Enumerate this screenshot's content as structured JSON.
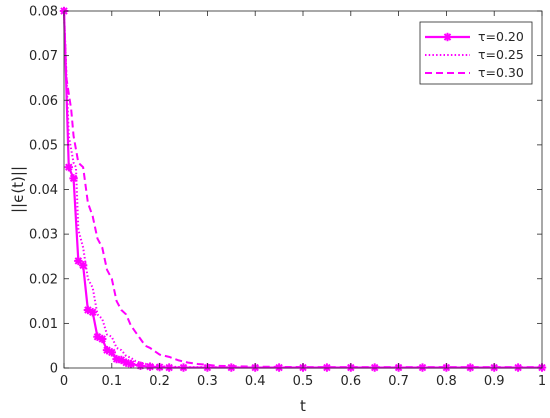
{
  "chart_data": {
    "type": "line",
    "title": "",
    "xlabel": "t",
    "ylabel": "||ϵ(t)||",
    "xlim": [
      0,
      1
    ],
    "ylim": [
      0,
      0.08
    ],
    "x_ticks": [
      0,
      0.1,
      0.2,
      0.3,
      0.4,
      0.5,
      0.6,
      0.7,
      0.8,
      0.9,
      1
    ],
    "x_tick_labels": [
      "0",
      "0.1",
      "0.2",
      "0.3",
      "0.4",
      "0.5",
      "0.6",
      "0.7",
      "0.8",
      "0.9",
      "1"
    ],
    "y_ticks": [
      0,
      0.01,
      0.02,
      0.03,
      0.04,
      0.05,
      0.06,
      0.07,
      0.08
    ],
    "y_tick_labels": [
      "0",
      "0.01",
      "0.02",
      "0.03",
      "0.04",
      "0.05",
      "0.06",
      "0.07",
      "0.08"
    ],
    "grid": false,
    "legend_position": "top-right",
    "color": "#ff00ff",
    "series": [
      {
        "name": "τ=0.20",
        "style": "solid-with-star-markers",
        "x": [
          0,
          0.01,
          0.02,
          0.03,
          0.04,
          0.05,
          0.06,
          0.07,
          0.08,
          0.09,
          0.1,
          0.11,
          0.12,
          0.13,
          0.14,
          0.16,
          0.18,
          0.2,
          0.22,
          0.25,
          0.3,
          0.35,
          0.4,
          0.45,
          0.5,
          0.55,
          0.6,
          0.65,
          0.7,
          0.75,
          0.8,
          0.85,
          0.9,
          0.95,
          1.0
        ],
        "y": [
          0.08,
          0.045,
          0.0425,
          0.024,
          0.023,
          0.013,
          0.0125,
          0.007,
          0.0065,
          0.004,
          0.0035,
          0.002,
          0.0018,
          0.0012,
          0.0009,
          0.0005,
          0.0003,
          0.0002,
          0.0001,
          0.0001,
          0.0001,
          0.0001,
          0.0001,
          0.0001,
          0.0001,
          0.0001,
          0.0001,
          0.0001,
          0.0001,
          0.0001,
          0.0001,
          0.0001,
          0.0001,
          0.0001,
          0.0001
        ]
      },
      {
        "name": "τ=0.25",
        "style": "dotted",
        "x": [
          0,
          0.005,
          0.01,
          0.02,
          0.025,
          0.03,
          0.04,
          0.05,
          0.06,
          0.07,
          0.08,
          0.09,
          0.1,
          0.11,
          0.12,
          0.13,
          0.14,
          0.15,
          0.16,
          0.18,
          0.2,
          0.22,
          0.25,
          0.3,
          0.4,
          0.5,
          0.6,
          0.7,
          0.8,
          0.9,
          1.0
        ],
        "y": [
          0.08,
          0.066,
          0.052,
          0.046,
          0.045,
          0.031,
          0.027,
          0.02,
          0.018,
          0.012,
          0.011,
          0.0075,
          0.007,
          0.0045,
          0.004,
          0.0027,
          0.0023,
          0.0015,
          0.0012,
          0.0007,
          0.0004,
          0.0003,
          0.0002,
          0.0002,
          0.0001,
          0.0001,
          0.0001,
          0.0001,
          0.0001,
          0.0001,
          0.0001
        ]
      },
      {
        "name": "τ=0.30",
        "style": "dashed",
        "x": [
          0,
          0.005,
          0.015,
          0.02,
          0.03,
          0.04,
          0.05,
          0.06,
          0.07,
          0.08,
          0.09,
          0.1,
          0.11,
          0.12,
          0.13,
          0.14,
          0.15,
          0.16,
          0.17,
          0.18,
          0.2,
          0.22,
          0.24,
          0.26,
          0.28,
          0.3,
          0.32,
          0.35,
          0.4,
          0.5,
          0.6,
          0.7,
          0.8,
          0.9,
          1.0
        ],
        "y": [
          0.08,
          0.065,
          0.058,
          0.052,
          0.046,
          0.045,
          0.037,
          0.034,
          0.029,
          0.027,
          0.022,
          0.02,
          0.015,
          0.013,
          0.012,
          0.0095,
          0.008,
          0.0065,
          0.005,
          0.0045,
          0.003,
          0.0025,
          0.0017,
          0.0012,
          0.0009,
          0.0007,
          0.0005,
          0.0004,
          0.0003,
          0.0002,
          0.0002,
          0.0002,
          0.0002,
          0.0002,
          0.0002
        ]
      }
    ]
  }
}
